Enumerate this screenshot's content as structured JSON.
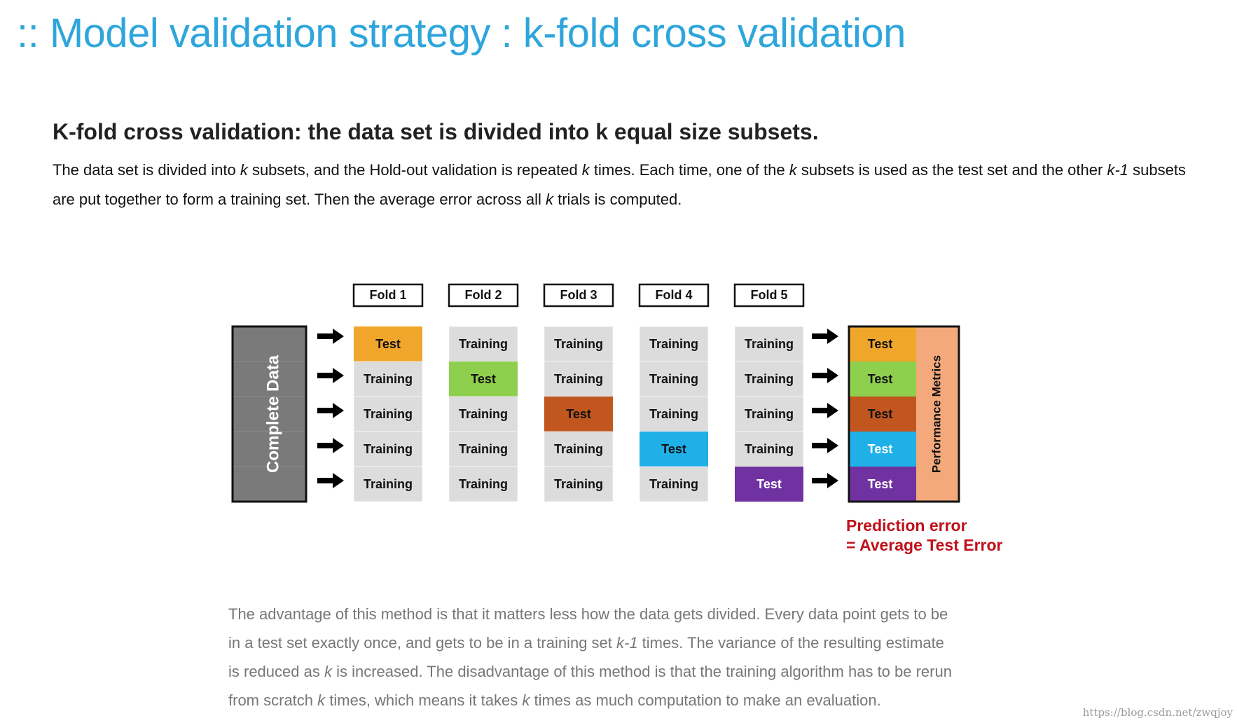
{
  "title": ":: Model validation strategy : k-fold cross validation",
  "heading": {
    "before": "K-fold cross validation: the data set is divided into ",
    "k": "k",
    "after": " equal size subsets."
  },
  "intro": {
    "line1": [
      {
        "t": "The data set is divided into "
      },
      {
        "t": "k",
        "i": true
      },
      {
        "t": " subsets, and the Hold-out validation is repeated "
      },
      {
        "t": "k",
        "i": true
      },
      {
        "t": " times. Each time, one of the "
      },
      {
        "t": "k",
        "i": true
      },
      {
        "t": " subsets is used as the test set and the other "
      },
      {
        "t": "k-1",
        "i": true
      },
      {
        "t": " subsets"
      }
    ],
    "line2": [
      {
        "t": "are put together to form a training set. Then the average error across all "
      },
      {
        "t": "k",
        "i": true
      },
      {
        "t": " trials is computed."
      }
    ]
  },
  "diagram": {
    "complete_data_label": "Complete Data",
    "folds": [
      "Fold 1",
      "Fold 2",
      "Fold 3",
      "Fold 4",
      "Fold 5"
    ],
    "training_label": "Training",
    "test_label": "Test",
    "metrics_label": "Performance Metrics",
    "test_colors": [
      "#f0a62b",
      "#8fcf4e",
      "#c1561f",
      "#1fb0e8",
      "#7032a0"
    ],
    "training_color": "#dcdcdc",
    "complete_data_color": "#7a7a7a",
    "metrics_color": "#f4a97c",
    "prediction_line1": "Prediction error",
    "prediction_line2": "= Average Test Error"
  },
  "note": {
    "line1": [
      {
        "t": "The advantage of this method is that it matters less how the data gets divided. Every data point gets to be"
      }
    ],
    "line2": [
      {
        "t": "in a test set exactly once, and gets to be in a training set "
      },
      {
        "t": "k-1",
        "i": true
      },
      {
        "t": " times. The variance of the resulting estimate"
      }
    ],
    "line3": [
      {
        "t": "is reduced as "
      },
      {
        "t": "k",
        "i": true
      },
      {
        "t": " is increased. The disadvantage of this method is that the training algorithm has to be rerun"
      }
    ],
    "line4": [
      {
        "t": "from scratch "
      },
      {
        "t": "k",
        "i": true
      },
      {
        "t": " times, which means it takes "
      },
      {
        "t": "k",
        "i": true
      },
      {
        "t": " times as much computation to make an evaluation."
      }
    ]
  },
  "footer_url": "https://blog.csdn.net/zwqjoy"
}
